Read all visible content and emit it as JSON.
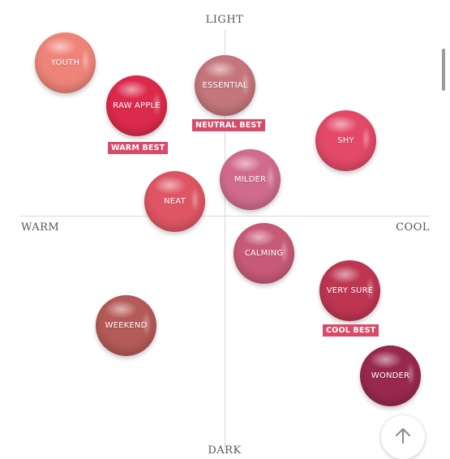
{
  "axes": {
    "top": "LIGHT",
    "bottom": "DARK",
    "left": "WARM",
    "right": "COOL"
  },
  "swatches": {
    "youth": {
      "name": "YOUTH",
      "color": "#ee8479"
    },
    "raw_apple": {
      "name": "RAW APPLE",
      "color": "#dc2a4c"
    },
    "essential": {
      "name": "ESSENTIAL",
      "color": "#c4767c"
    },
    "shy": {
      "name": "SHY",
      "color": "#e34968"
    },
    "neat": {
      "name": "NEAT",
      "color": "#de5564"
    },
    "milder": {
      "name": "MILDER",
      "color": "#d06b8e"
    },
    "calming": {
      "name": "CALMING",
      "color": "#c75a77"
    },
    "very_sure": {
      "name": "VERY SURE",
      "color": "#be3552"
    },
    "weekend": {
      "name": "WEEKEND",
      "color": "#b45a58"
    },
    "wonder": {
      "name": "WONDER",
      "color": "#98284d"
    }
  },
  "badges": {
    "warm_best": "WARM BEST",
    "neutral_best": "NEUTRAL BEST",
    "cool_best": "COOL BEST",
    "color": "#d84a6a"
  },
  "icons": {
    "scroll_top": "arrow-up-icon"
  }
}
